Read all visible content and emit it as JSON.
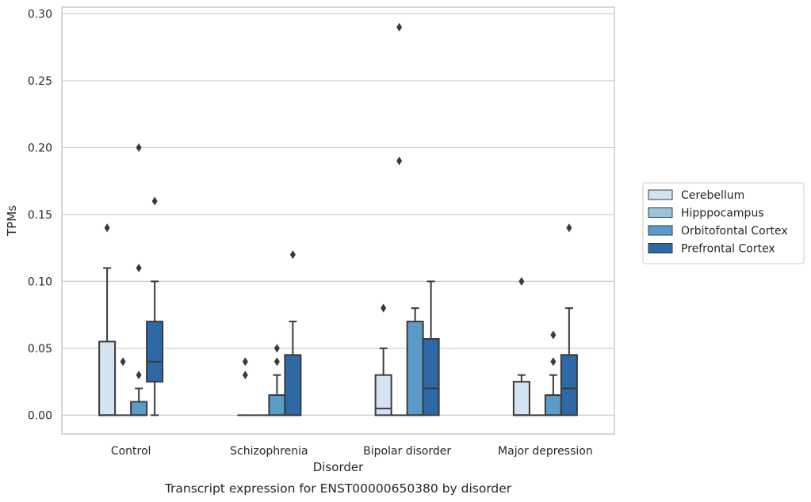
{
  "chart_data": {
    "type": "boxplot",
    "caption": "Transcript expression for ENST00000650380 by disorder",
    "xlabel": "Disorder",
    "ylabel": "TPMs",
    "ylim": [
      -0.014,
      0.305
    ],
    "yticks": [
      0.0,
      0.05,
      0.1,
      0.15,
      0.2,
      0.25,
      0.3
    ],
    "ytick_labels": [
      "0.00",
      "0.05",
      "0.10",
      "0.15",
      "0.20",
      "0.25",
      "0.30"
    ],
    "grid": "horizontal",
    "legend_position": "right",
    "categories": [
      "Control",
      "Schizophrenia",
      "Bipolar disorder",
      "Major depression"
    ],
    "series": [
      {
        "name": "Cerebellum",
        "color": "#d4e3f1",
        "boxes": [
          {
            "q1": 0.0,
            "median": 0.0,
            "q3": 0.055,
            "whisker_low": 0.0,
            "whisker_high": 0.11,
            "outliers": [
              0.14
            ]
          },
          {
            "q1": 0.0,
            "median": 0.0,
            "q3": 0.0,
            "whisker_low": 0.0,
            "whisker_high": 0.0,
            "outliers": [
              0.03,
              0.04
            ]
          },
          {
            "q1": 0.0,
            "median": 0.005,
            "q3": 0.03,
            "whisker_low": 0.0,
            "whisker_high": 0.05,
            "outliers": [
              0.08
            ]
          },
          {
            "q1": 0.0,
            "median": 0.0,
            "q3": 0.025,
            "whisker_low": 0.0,
            "whisker_high": 0.03,
            "outliers": [
              0.1
            ]
          }
        ]
      },
      {
        "name": "Hipppocampus",
        "color": "#9ac3de",
        "boxes": [
          {
            "q1": 0.0,
            "median": 0.0,
            "q3": 0.0,
            "whisker_low": 0.0,
            "whisker_high": 0.0,
            "outliers": [
              0.04
            ]
          },
          {
            "q1": 0.0,
            "median": 0.0,
            "q3": 0.0,
            "whisker_low": 0.0,
            "whisker_high": 0.0,
            "outliers": []
          },
          {
            "q1": 0.0,
            "median": 0.0,
            "q3": 0.0,
            "whisker_low": 0.0,
            "whisker_high": 0.0,
            "outliers": [
              0.19,
              0.29
            ]
          },
          {
            "q1": 0.0,
            "median": 0.0,
            "q3": 0.0,
            "whisker_low": 0.0,
            "whisker_high": 0.0,
            "outliers": []
          }
        ]
      },
      {
        "name": "Orbitofontal Cortex",
        "color": "#5b9bca",
        "boxes": [
          {
            "q1": 0.0,
            "median": 0.0,
            "q3": 0.01,
            "whisker_low": 0.0,
            "whisker_high": 0.02,
            "outliers": [
              0.03,
              0.11,
              0.2
            ]
          },
          {
            "q1": 0.0,
            "median": 0.0,
            "q3": 0.015,
            "whisker_low": 0.0,
            "whisker_high": 0.03,
            "outliers": [
              0.04,
              0.05
            ]
          },
          {
            "q1": 0.0,
            "median": 0.0,
            "q3": 0.07,
            "whisker_low": 0.0,
            "whisker_high": 0.08,
            "outliers": []
          },
          {
            "q1": 0.0,
            "median": 0.0,
            "q3": 0.015,
            "whisker_low": 0.0,
            "whisker_high": 0.03,
            "outliers": [
              0.04,
              0.06
            ]
          }
        ]
      },
      {
        "name": "Prefrontal Cortex",
        "color": "#2d6aa5",
        "boxes": [
          {
            "q1": 0.025,
            "median": 0.04,
            "q3": 0.07,
            "whisker_low": 0.0,
            "whisker_high": 0.1,
            "outliers": [
              0.16
            ]
          },
          {
            "q1": 0.0,
            "median": 0.0,
            "q3": 0.045,
            "whisker_low": 0.0,
            "whisker_high": 0.07,
            "outliers": [
              0.12
            ]
          },
          {
            "q1": 0.0,
            "median": 0.02,
            "q3": 0.057,
            "whisker_low": 0.0,
            "whisker_high": 0.1,
            "outliers": []
          },
          {
            "q1": 0.0,
            "median": 0.02,
            "q3": 0.045,
            "whisker_low": 0.0,
            "whisker_high": 0.08,
            "outliers": [
              0.14
            ]
          }
        ]
      }
    ]
  }
}
